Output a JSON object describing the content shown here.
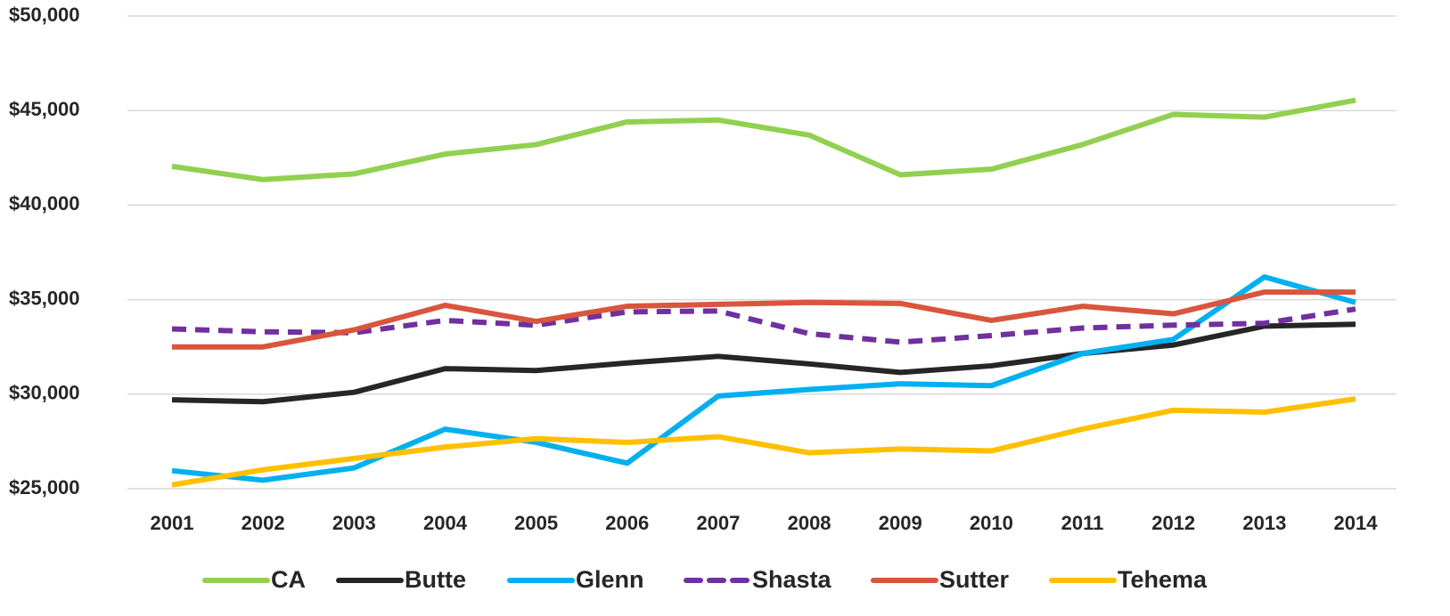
{
  "chart_data": {
    "type": "line",
    "x": [
      2001,
      2002,
      2003,
      2004,
      2005,
      2006,
      2007,
      2008,
      2009,
      2010,
      2011,
      2012,
      2013,
      2014
    ],
    "xlim": [
      2001,
      2014
    ],
    "xticks": [
      2001,
      2002,
      2003,
      2004,
      2005,
      2006,
      2007,
      2008,
      2009,
      2010,
      2011,
      2012,
      2013,
      2014
    ],
    "ylim": [
      25000,
      50000
    ],
    "yticks": [
      {
        "value": 25000,
        "label": "$25,000"
      },
      {
        "value": 30000,
        "label": "$30,000"
      },
      {
        "value": 35000,
        "label": "$35,000"
      },
      {
        "value": 40000,
        "label": "$40,000"
      },
      {
        "value": 45000,
        "label": "$45,000"
      },
      {
        "value": 50000,
        "label": "$50,000"
      }
    ],
    "grid": true,
    "legend": "bottom",
    "series": [
      {
        "name": "CA",
        "color": "#92d050",
        "style": "solid",
        "values": [
          42050,
          41350,
          41650,
          42700,
          43200,
          44400,
          44500,
          43700,
          41600,
          41900,
          43200,
          44800,
          44650,
          45550
        ]
      },
      {
        "name": "Butte",
        "color": "#262626",
        "style": "solid",
        "values": [
          29700,
          29600,
          30100,
          31350,
          31250,
          31650,
          32000,
          31600,
          31150,
          31500,
          32150,
          32600,
          33600,
          33700
        ]
      },
      {
        "name": "Glenn",
        "color": "#00b0f0",
        "style": "solid",
        "values": [
          25950,
          25450,
          26100,
          28150,
          27450,
          26350,
          29900,
          30250,
          30550,
          30450,
          32150,
          32900,
          36200,
          34850
        ]
      },
      {
        "name": "Shasta",
        "color": "#7030a0",
        "style": "dashed",
        "values": [
          33450,
          33300,
          33250,
          33900,
          33650,
          34350,
          34400,
          33200,
          32750,
          33100,
          33500,
          33650,
          33750,
          34500
        ]
      },
      {
        "name": "Sutter",
        "color": "#d9553d",
        "style": "solid",
        "values": [
          32500,
          32500,
          33400,
          34700,
          33850,
          34650,
          34750,
          34850,
          34800,
          33900,
          34650,
          34250,
          35400,
          35400
        ]
      },
      {
        "name": "Tehema",
        "color": "#ffc000",
        "style": "solid",
        "values": [
          25200,
          26000,
          26600,
          27200,
          27650,
          27450,
          27750,
          26900,
          27100,
          27000,
          28150,
          29150,
          29050,
          29750
        ]
      }
    ]
  }
}
